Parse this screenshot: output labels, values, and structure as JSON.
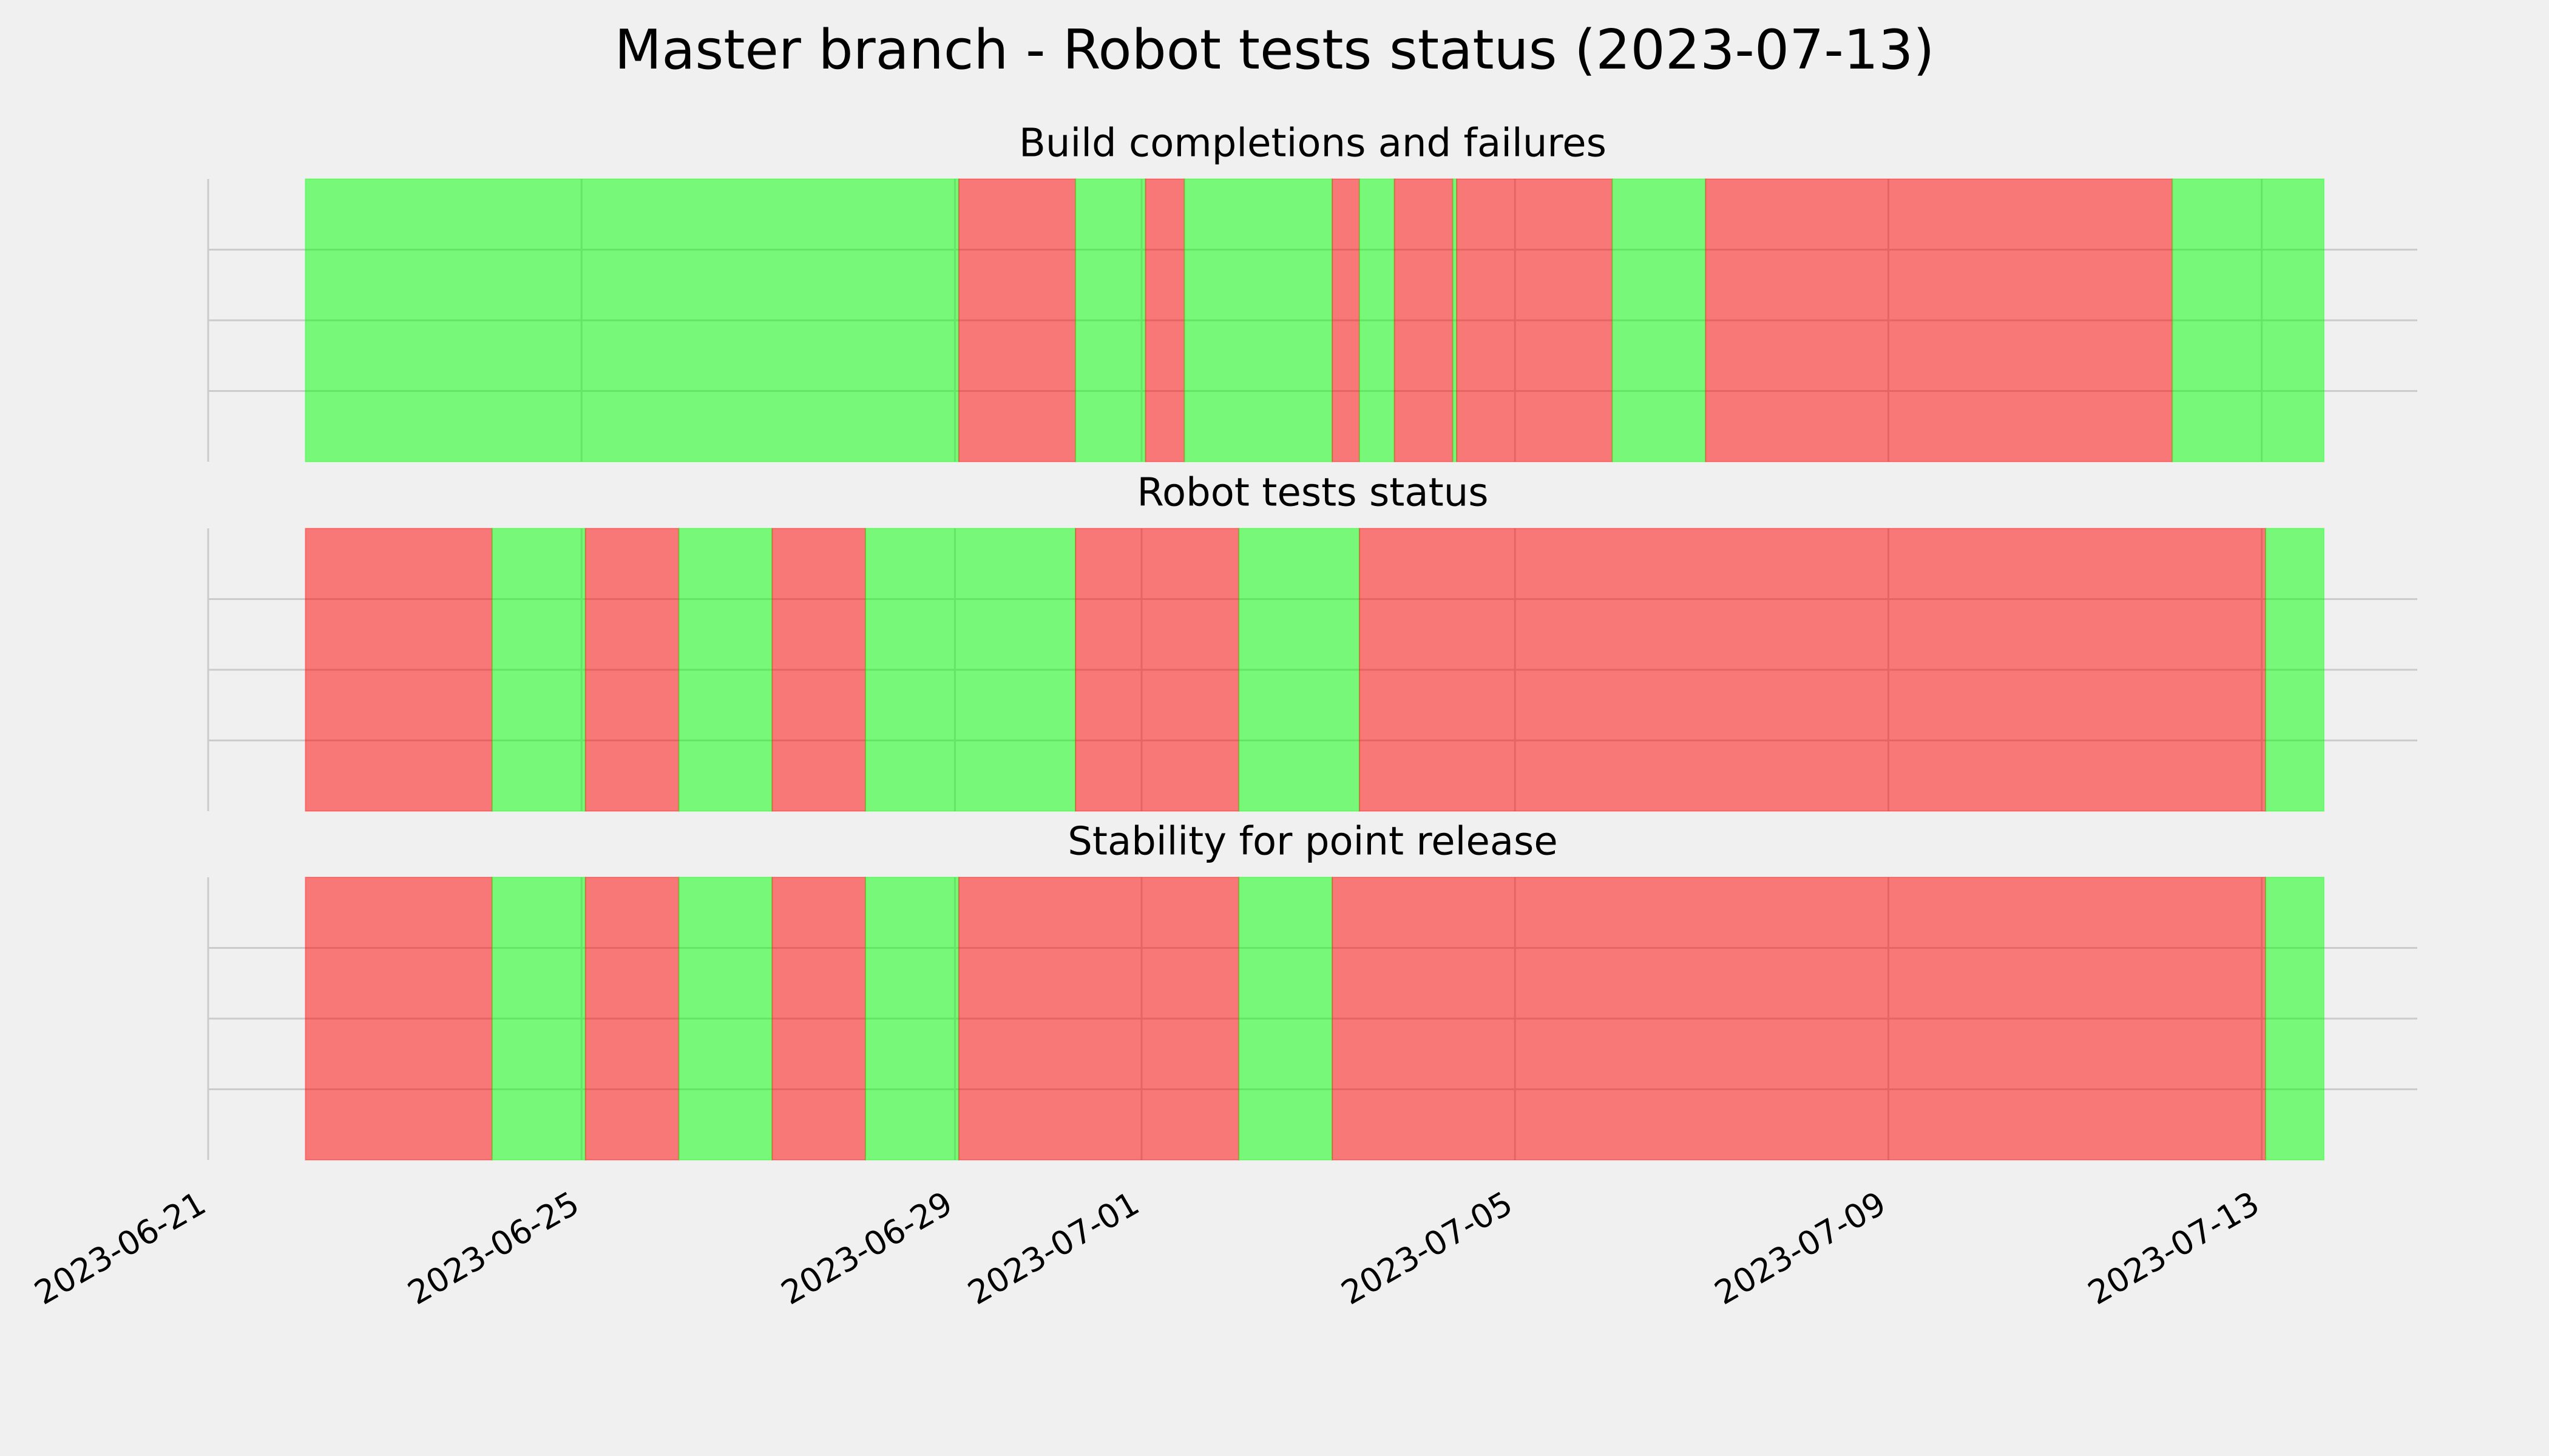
{
  "chart_data": {
    "type": "timeline",
    "title": "Master branch - Robot tests status (2023-07-13)",
    "xlim": [
      "2023-06-21 00:00",
      "2023-07-14 16:00"
    ],
    "xticks": [
      "2023-06-21",
      "2023-06-25",
      "2023-06-29",
      "2023-07-01",
      "2023-07-05",
      "2023-07-09",
      "2023-07-13"
    ],
    "ylim": [
      0,
      1
    ],
    "yticks": [
      0.25,
      0.5,
      0.75
    ],
    "grid": true,
    "opacity": 0.5,
    "panels": [
      {
        "title": "Build completions and failures",
        "bins": [
          "2023-06-22 01:00",
          "2023-06-29 01:00",
          "2023-06-30 07:00",
          "2023-07-01 01:00",
          "2023-07-01 11:00",
          "2023-07-03 01:00",
          "2023-07-03 08:00",
          "2023-07-03 17:00",
          "2023-07-04 08:00",
          "2023-07-04 09:00",
          "2023-07-06 01:00",
          "2023-07-07 01:00",
          "2023-07-12 01:00",
          "2023-07-13 16:00"
        ],
        "colors": [
          "#00ff00",
          "#ff0000",
          "#00ff00",
          "#ff0000",
          "#00ff00",
          "#ff0000",
          "#00ff00",
          "#ff0000",
          "#00ff00",
          "#ff0000",
          "#00ff00",
          "#ff0000",
          "#00ff00"
        ]
      },
      {
        "title": "Robot tests status",
        "bins": [
          "2023-06-22 01:00",
          "2023-06-24 01:00",
          "2023-06-25 01:00",
          "2023-06-26 01:00",
          "2023-06-27 01:00",
          "2023-06-28 01:00",
          "2023-06-30 07:00",
          "2023-07-02 01:00",
          "2023-07-03 08:00",
          "2023-07-13 01:00",
          "2023-07-13 16:00"
        ],
        "colors": [
          "#ff0000",
          "#00ff00",
          "#ff0000",
          "#00ff00",
          "#ff0000",
          "#00ff00",
          "#ff0000",
          "#00ff00",
          "#ff0000",
          "#00ff00"
        ]
      },
      {
        "title": "Stability for point release",
        "bins": [
          "2023-06-22 01:00",
          "2023-06-24 01:00",
          "2023-06-25 01:00",
          "2023-06-26 01:00",
          "2023-06-27 01:00",
          "2023-06-28 01:00",
          "2023-06-29 01:00",
          "2023-07-02 01:00",
          "2023-07-03 01:00",
          "2023-07-13 01:00",
          "2023-07-13 16:00"
        ],
        "colors": [
          "#ff0000",
          "#00ff00",
          "#ff0000",
          "#00ff00",
          "#ff0000",
          "#00ff00",
          "#ff0000",
          "#00ff00",
          "#ff0000",
          "#00ff00"
        ]
      }
    ]
  }
}
